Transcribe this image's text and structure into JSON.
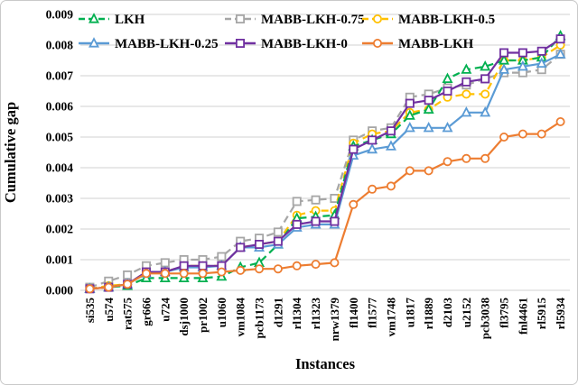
{
  "chart_data": {
    "type": "line",
    "title": "",
    "xlabel": "Instances",
    "ylabel": "Cumulative gap",
    "ylim": [
      0,
      0.009
    ],
    "ytick_step": 0.001,
    "y_tick_labels": [
      "0.000",
      "0.001",
      "0.002",
      "0.003",
      "0.004",
      "0.005",
      "0.006",
      "0.007",
      "0.008",
      "0.009"
    ],
    "grid": true,
    "legend_position": "top-inside",
    "gridline_color": "#d9d9d9",
    "categories": [
      "si535",
      "u574",
      "rat575",
      "gr666",
      "u724",
      "dsj1000",
      "pr1002",
      "u1060",
      "vm1084",
      "pcb1173",
      "d1291",
      "rl1304",
      "rl1323",
      "nrw1379",
      "fl1400",
      "fl1577",
      "vm1748",
      "u1817",
      "rl1889",
      "d2103",
      "u2152",
      "pcb3038",
      "fl3795",
      "fnl4461",
      "rl5915",
      "rl5934"
    ],
    "series": [
      {
        "name": "LKH",
        "color": "#00b050",
        "line_style": "dashed",
        "marker": "triangle",
        "values": [
          5e-05,
          0.0001,
          0.00015,
          0.0004,
          0.0004,
          0.0004,
          0.0004,
          0.00045,
          0.00075,
          0.0009,
          0.0015,
          0.00235,
          0.0024,
          0.00245,
          0.0047,
          0.0049,
          0.0051,
          0.0057,
          0.0059,
          0.0069,
          0.0072,
          0.0073,
          0.0075,
          0.0075,
          0.0076,
          0.0083
        ]
      },
      {
        "name": "MABB-LKH-0.75",
        "color": "#a6a6a6",
        "line_style": "dashed",
        "marker": "square",
        "values": [
          0.0001,
          0.0003,
          0.0005,
          0.0008,
          0.0009,
          0.001,
          0.001,
          0.0011,
          0.0016,
          0.0017,
          0.0019,
          0.0029,
          0.00295,
          0.003,
          0.0049,
          0.0052,
          0.0053,
          0.0063,
          0.0064,
          0.0066,
          0.0067,
          0.0069,
          0.0071,
          0.0071,
          0.0072,
          0.0077
        ]
      },
      {
        "name": "MABB-LKH-0.5",
        "color": "#ffc000",
        "line_style": "dashed",
        "marker": "circle",
        "values": [
          5e-05,
          0.00015,
          0.0002,
          0.0006,
          0.0006,
          0.0008,
          0.0008,
          0.0008,
          0.0014,
          0.0015,
          0.0016,
          0.00245,
          0.0026,
          0.0026,
          0.0048,
          0.0051,
          0.0052,
          0.0058,
          0.0059,
          0.0063,
          0.0064,
          0.0064,
          0.0075,
          0.0075,
          0.0076,
          0.008
        ]
      },
      {
        "name": "MABB-LKH-0.25",
        "color": "#5b9bd5",
        "line_style": "solid",
        "marker": "triangle",
        "values": [
          5e-05,
          0.0001,
          0.0002,
          0.00055,
          0.0006,
          0.00075,
          0.00075,
          0.0008,
          0.0014,
          0.0014,
          0.0015,
          0.00205,
          0.00215,
          0.00215,
          0.0044,
          0.0046,
          0.0047,
          0.0053,
          0.0053,
          0.0053,
          0.0058,
          0.0058,
          0.0072,
          0.0073,
          0.0074,
          0.0077
        ]
      },
      {
        "name": "MABB-LKH-0",
        "color": "#7030a0",
        "line_style": "solid",
        "marker": "square",
        "values": [
          5e-05,
          0.0001,
          0.0002,
          0.0006,
          0.0006,
          0.0008,
          0.0008,
          0.0008,
          0.0014,
          0.0015,
          0.0016,
          0.00215,
          0.00225,
          0.00225,
          0.0046,
          0.0049,
          0.0052,
          0.0061,
          0.0062,
          0.0065,
          0.0068,
          0.0069,
          0.00775,
          0.00775,
          0.0078,
          0.0082
        ]
      },
      {
        "name": "MABB-LKH",
        "color": "#ed7d31",
        "line_style": "solid",
        "marker": "circle",
        "values": [
          5e-05,
          0.0001,
          0.0002,
          0.00055,
          0.00055,
          0.00055,
          0.00055,
          0.0006,
          0.00065,
          0.0007,
          0.0007,
          0.0008,
          0.00085,
          0.0009,
          0.0028,
          0.0033,
          0.0034,
          0.0039,
          0.0039,
          0.0042,
          0.0043,
          0.0043,
          0.005,
          0.0051,
          0.0051,
          0.0055
        ]
      }
    ]
  }
}
